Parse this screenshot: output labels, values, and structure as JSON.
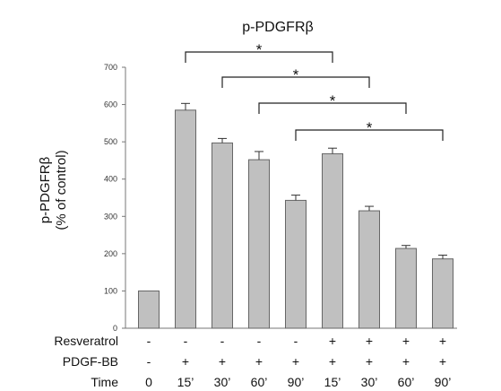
{
  "chart_data": {
    "type": "bar",
    "title": "p-PDGFRβ",
    "ylabel": [
      "p-PDGFRβ",
      "(% of control)"
    ],
    "ylim": [
      0,
      700
    ],
    "yticks": [
      0,
      100,
      200,
      300,
      400,
      500,
      600,
      700
    ],
    "categories": [
      "0",
      "15’",
      "30’",
      "60’",
      "90’",
      "15’",
      "30’",
      "60’",
      "90’"
    ],
    "values": [
      100,
      585,
      497,
      452,
      343,
      468,
      315,
      214,
      186
    ],
    "errors": [
      0,
      18,
      12,
      22,
      14,
      15,
      12,
      8,
      10
    ],
    "bar_color": "#c0c0c0",
    "condition_rows": [
      {
        "label": "Resveratrol",
        "values": [
          "-",
          "-",
          "-",
          "-",
          "-",
          "+",
          "+",
          "+",
          "+"
        ]
      },
      {
        "label": "PDGF-BB",
        "values": [
          "-",
          "+",
          "+",
          "+",
          "+",
          "+",
          "+",
          "+",
          "+"
        ]
      },
      {
        "label": "Time",
        "values": [
          "0",
          "15’",
          "30’",
          "60’",
          "90’",
          "15’",
          "30’",
          "60’",
          "90’"
        ]
      }
    ],
    "significance": [
      {
        "from": 1,
        "to": 5,
        "label": "*"
      },
      {
        "from": 2,
        "to": 6,
        "label": "*"
      },
      {
        "from": 3,
        "to": 7,
        "label": "*"
      },
      {
        "from": 4,
        "to": 8,
        "label": "*"
      }
    ]
  }
}
